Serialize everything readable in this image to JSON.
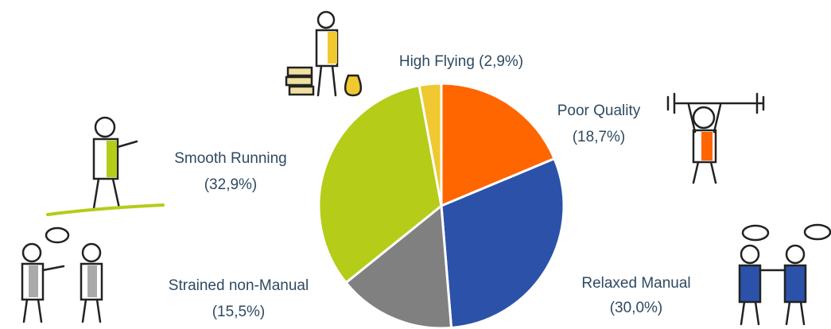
{
  "chart_data": {
    "type": "pie",
    "categories": [
      "Poor Quality",
      "Relaxed Manual",
      "Strained non-Manual",
      "Smooth Running",
      "High Flying"
    ],
    "values": [
      18.7,
      30.0,
      15.5,
      32.9,
      2.9
    ],
    "value_labels": [
      "(18,7%)",
      "(30,0%)",
      "(15,5%)",
      "(32,9%)",
      "(2,9%)"
    ],
    "colors": [
      "#ff6600",
      "#2b52a8",
      "#808080",
      "#b5cc18",
      "#f0c830"
    ]
  }
}
